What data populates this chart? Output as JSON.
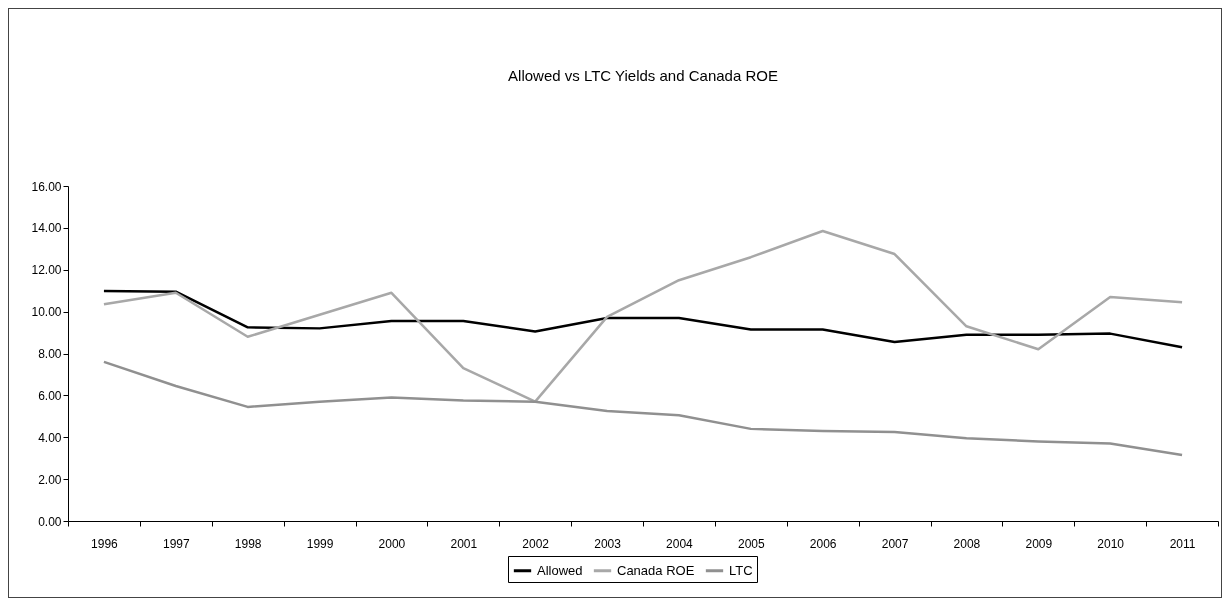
{
  "chart_data": {
    "type": "line",
    "title": "Allowed vs LTC Yields and Canada ROE",
    "categories": [
      "1996",
      "1997",
      "1998",
      "1999",
      "2000",
      "2001",
      "2002",
      "2003",
      "2004",
      "2005",
      "2006",
      "2007",
      "2008",
      "2009",
      "2010",
      "2011"
    ],
    "series": [
      {
        "name": "Allowed",
        "color": "#000000",
        "values": [
          10.98,
          10.95,
          9.25,
          9.2,
          9.55,
          9.55,
          9.05,
          9.7,
          9.7,
          9.15,
          9.15,
          8.55,
          8.9,
          8.9,
          8.95,
          8.3
        ]
      },
      {
        "name": "Canada ROE",
        "color": "#a8a8a8",
        "values": [
          10.35,
          10.9,
          8.8,
          9.85,
          10.9,
          7.3,
          5.7,
          9.75,
          11.5,
          12.6,
          13.85,
          12.75,
          9.3,
          8.2,
          10.7,
          10.45
        ]
      },
      {
        "name": "LTC",
        "color": "#909090",
        "values": [
          7.6,
          6.45,
          5.45,
          5.7,
          5.9,
          5.75,
          5.7,
          5.25,
          5.05,
          4.4,
          4.3,
          4.25,
          3.95,
          3.8,
          3.7,
          3.15
        ]
      }
    ],
    "ylim": [
      0,
      16
    ],
    "yticks": [
      {
        "value": 0,
        "label": "0.00"
      },
      {
        "value": 2,
        "label": "2.00"
      },
      {
        "value": 4,
        "label": "4.00"
      },
      {
        "value": 6,
        "label": "6.00"
      },
      {
        "value": 8,
        "label": "8.00"
      },
      {
        "value": 10,
        "label": "10.00"
      },
      {
        "value": 12,
        "label": "12.00"
      },
      {
        "value": 14,
        "label": "14.00"
      },
      {
        "value": 16,
        "label": "16.00"
      }
    ],
    "legend": "bottom",
    "grid": false,
    "marker": "none",
    "line_style": "solid"
  }
}
